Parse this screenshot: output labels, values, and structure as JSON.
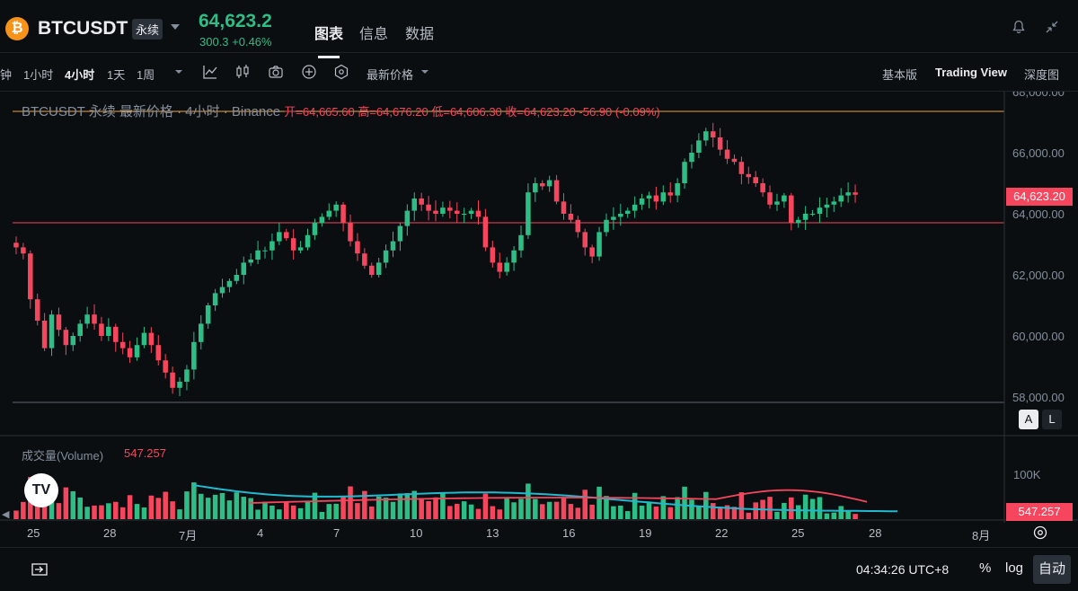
{
  "header": {
    "logo_glyph": "₿",
    "symbol": "BTCUSDT",
    "contract_type": "永续",
    "last_price": "64,623.2",
    "change": "300.3 +0.46%",
    "tabs": [
      "图表",
      "信息",
      "数据"
    ],
    "active_tab": "图表",
    "icons": [
      "bell-icon",
      "collapse-icon"
    ]
  },
  "toolbar": {
    "intervals": [
      "钟",
      "1小时",
      "4小时",
      "1天",
      "1周"
    ],
    "active_interval": "4小时",
    "price_type": "最新价格",
    "views": [
      "基本版",
      "Trading View",
      "深度图"
    ],
    "active_view": "Trading View"
  },
  "legend": {
    "title": "BTCUSDT 永续 最新价格 · 4小时 · Binance",
    "ohlc": "开=64,665.60 高=64,676.20 低=64,606.30 收=64,623.20 -56.90 (-0.09%)"
  },
  "volume_panel": {
    "label": "成交量(Volume)",
    "value": "547.257",
    "axis_label": "100K",
    "last_tag": "547.257"
  },
  "price_axis": {
    "ticks": [
      "68,000.00",
      "66,000.00",
      "64,000.00",
      "62,000.00",
      "60,000.00",
      "58,000.00"
    ],
    "last_tag": "64,623.20"
  },
  "time_axis": {
    "ticks": [
      "25",
      "28",
      "7月",
      "4",
      "7",
      "10",
      "13",
      "16",
      "19",
      "22",
      "25",
      "28",
      "8月"
    ]
  },
  "footer": {
    "clock": "04:34:26 UTC+8",
    "percent": "%",
    "log": "log",
    "auto": "自动"
  },
  "colors": {
    "up": "#2ebd85",
    "down": "#f6465d",
    "background": "#0b0e11",
    "ma_cyan": "#22b8cf",
    "ma_red": "#f6465d",
    "high_line": "#f0a43a"
  },
  "chart_data": {
    "type": "candlestick",
    "interval": "4h",
    "ylim": [
      57500,
      68000
    ],
    "high_line": 67300,
    "low_line": 63700,
    "x_ticks": [
      "25",
      "28",
      "7月",
      "4",
      "7",
      "10",
      "13",
      "16",
      "19",
      "22",
      "25",
      "28",
      "8月"
    ],
    "closes": [
      62900,
      62700,
      61200,
      60500,
      59600,
      60700,
      60200,
      59700,
      60000,
      60400,
      60700,
      60400,
      60000,
      60300,
      59800,
      59600,
      59300,
      59700,
      60100,
      59700,
      59200,
      58800,
      58300,
      58500,
      58900,
      59800,
      60400,
      61000,
      61400,
      61600,
      61800,
      62000,
      62400,
      62500,
      62800,
      62800,
      63100,
      63400,
      63200,
      62800,
      62900,
      63300,
      63700,
      63900,
      64100,
      64300,
      63700,
      63100,
      62700,
      62300,
      62000,
      62400,
      62800,
      63100,
      63600,
      64100,
      64500,
      64300,
      64100,
      64000,
      64200,
      64100,
      64000,
      64000,
      64100,
      63900,
      62900,
      62400,
      62100,
      62400,
      62800,
      63300,
      64700,
      65000,
      64900,
      65100,
      64400,
      64000,
      63800,
      63400,
      62900,
      62600,
      63400,
      63800,
      63900,
      64000,
      64100,
      64300,
      64500,
      64600,
      64400,
      64700,
      64600,
      65000,
      65700,
      66000,
      66400,
      66700,
      66500,
      66100,
      65800,
      65700,
      65300,
      65200,
      65000,
      64700,
      64300,
      64400,
      64600,
      63700,
      63800,
      64000,
      64000,
      64200,
      64300,
      64400,
      64600,
      64700,
      64623
    ],
    "volume_ma_cyan_profile": "smooth",
    "volume_ma_red_profile": "smooth"
  }
}
